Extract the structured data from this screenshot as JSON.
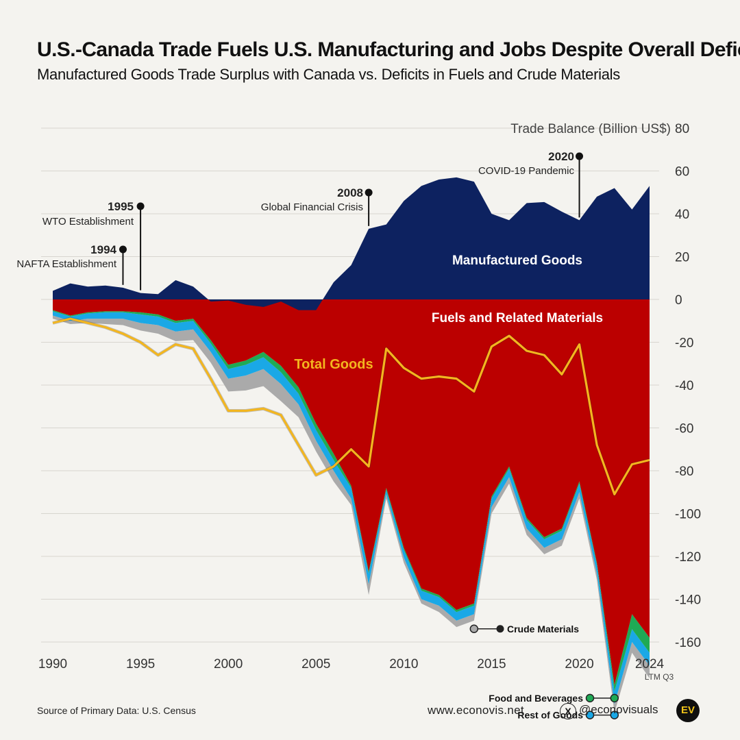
{
  "header": {
    "title": "U.S.-Canada Trade Fuels U.S. Manufacturing and Jobs Despite Overall Deficit",
    "subtitle": "Manufactured Goods Trade Surplus with Canada vs. Deficits in Fuels and Crude Materials"
  },
  "footer": {
    "source": "Source of Primary Data: U.S. Census",
    "website": "www.econovis.net",
    "x_icon": "x-logo-icon",
    "handle": "@econovisuals",
    "logo_text": "EV"
  },
  "chart_data": {
    "type": "area",
    "title": "U.S.-Canada Trade Fuels U.S. Manufacturing and Jobs Despite Overall Deficit",
    "subtitle": "Manufactured Goods Trade Surplus with Canada vs. Deficits in Fuels and Crude Materials",
    "ylabel": "Trade Balance (Billion US$)",
    "ylim": [
      -160,
      80
    ],
    "yticks": [
      80,
      60,
      40,
      20,
      0,
      -20,
      -40,
      -60,
      -80,
      -100,
      -120,
      -140,
      -160
    ],
    "x_tick_labels": [
      "1990",
      "1995",
      "2000",
      "2005",
      "2010",
      "2015",
      "2020",
      "2024"
    ],
    "x_tick_sub": "LTM Q3",
    "grid": true,
    "x": [
      1990,
      1991,
      1992,
      1993,
      1994,
      1995,
      1996,
      1997,
      1998,
      1999,
      2000,
      2001,
      2002,
      2003,
      2004,
      2005,
      2006,
      2007,
      2008,
      2009,
      2010,
      2011,
      2012,
      2013,
      2014,
      2015,
      2016,
      2017,
      2018,
      2019,
      2020,
      2021,
      2022,
      2023,
      2024
    ],
    "series": [
      {
        "name": "Manufactured Goods",
        "color": "#0d2260",
        "values": [
          4,
          7.5,
          6,
          6.5,
          5.5,
          3,
          2.5,
          9,
          6,
          -1,
          -0.5,
          -2.5,
          -3.5,
          -1,
          -5,
          -5,
          8,
          16,
          33,
          35,
          46,
          53,
          56,
          57,
          55,
          40,
          37,
          45,
          45.5,
          41,
          37,
          48,
          52,
          42,
          53
        ]
      },
      {
        "name": "Fuels and Related Materials",
        "color": "#bb0000",
        "values": [
          -5,
          -7.5,
          -6,
          -5.5,
          -5.5,
          -6,
          -7,
          -10,
          -9,
          -19,
          -30.5,
          -28.5,
          -24.5,
          -31,
          -41,
          -58,
          -72,
          -87,
          -127,
          -88,
          -116,
          -135,
          -138,
          -145,
          -142,
          -92,
          -78,
          -102,
          -111,
          -107,
          -85,
          -123,
          -180,
          -147,
          -158
        ]
      },
      {
        "name": "Food and Beverages",
        "color": "#1faa55",
        "values": [
          -0.5,
          -0.5,
          -0.5,
          -0.5,
          -0.5,
          -1,
          -1,
          -1,
          -1,
          -1.5,
          -2,
          -2,
          -2.5,
          -3,
          -3,
          -3,
          -3,
          -1,
          -1,
          -1,
          -1,
          -1,
          -1,
          -1,
          -1,
          -1,
          -1,
          -1,
          -1,
          -1,
          -1,
          -1,
          -3,
          -7,
          -7
        ]
      },
      {
        "name": "Rest of Goods",
        "color": "#1aa8e6",
        "values": [
          -2,
          -2,
          -2.5,
          -3,
          -3,
          -4,
          -4,
          -4,
          -4,
          -4,
          -4.5,
          -5,
          -5.5,
          -5.5,
          -5,
          -5,
          -5,
          -5,
          -5,
          -2,
          -3.5,
          -4,
          -4,
          -4,
          -4,
          -4,
          -4,
          -4,
          -4,
          -4,
          -4,
          -4,
          -6,
          -6,
          -6
        ]
      },
      {
        "name": "Crude Materials",
        "color": "#aaaaaa",
        "values": [
          -1.5,
          -1.5,
          -2,
          -2.5,
          -3,
          -3.5,
          -4,
          -4.5,
          -5,
          -5,
          -6,
          -7,
          -8,
          -8,
          -6,
          -5,
          -5,
          -3,
          -5,
          -2,
          -2.5,
          -2,
          -3,
          -3,
          -3,
          -3,
          -3,
          -3,
          -3,
          -3,
          -3,
          -3,
          -4,
          -5,
          -6
        ]
      },
      {
        "name": "Total Goods",
        "color": "#f3b61f",
        "values": [
          -11,
          -9,
          -11,
          -13,
          -16,
          -20,
          -26,
          -21,
          -23,
          -37,
          -52,
          -52,
          -51,
          -54,
          -68,
          -82,
          -78,
          -70,
          -78,
          -23,
          -32,
          -37,
          -36,
          -37,
          -43,
          -22,
          -17,
          -24,
          -26,
          -35,
          -21,
          -68,
          -91,
          -77,
          -75
        ]
      }
    ],
    "annotations": [
      {
        "year": "1994",
        "label": "NAFTA Establishment"
      },
      {
        "year": "1995",
        "label": "WTO Establishment"
      },
      {
        "year": "2008",
        "label": "Global Financial Crisis"
      },
      {
        "year": "2020",
        "label": "COVID-19 Pandemic"
      }
    ]
  }
}
